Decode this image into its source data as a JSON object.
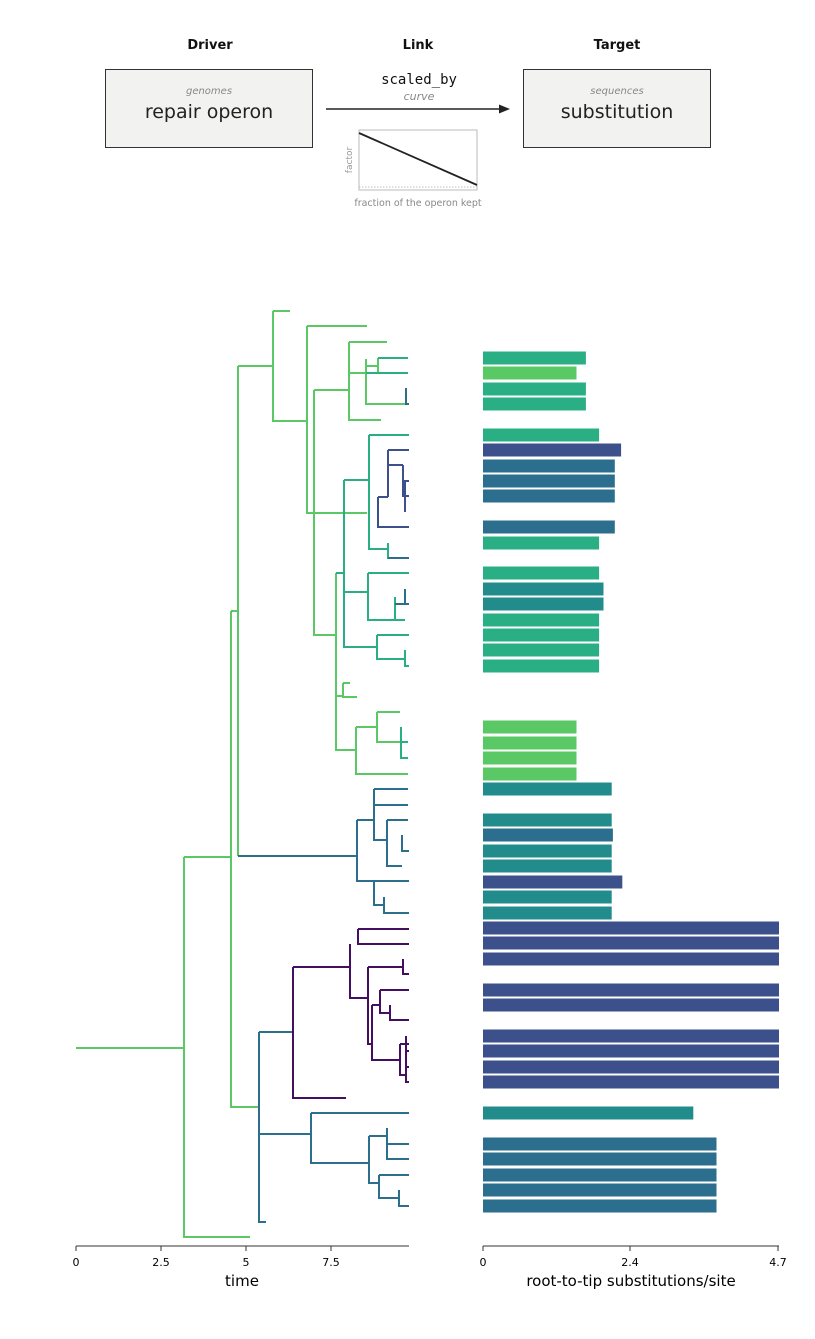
{
  "header": {
    "driver_title": "Driver",
    "link_title": "Link",
    "target_title": "Target"
  },
  "driver": {
    "category": "genomes",
    "name": "repair operon"
  },
  "link": {
    "relation": "scaled_by",
    "function": "curve",
    "inset_ylabel": "factor",
    "inset_xlabel": "fraction of the operon kept"
  },
  "target": {
    "category": "sequences",
    "name": "substitution"
  },
  "tree_axis": {
    "label": "time",
    "ticks": [
      "0",
      "2.5",
      "5",
      "7.5"
    ]
  },
  "bar_axis": {
    "label": "root-to-tip substitutions/site",
    "ticks": [
      "0",
      "2.4",
      "4.7"
    ]
  },
  "colors": {
    "light_green": "#5ac864",
    "green": "#2aaf84",
    "teal": "#228c8d",
    "blue_teal": "#2c6e8e",
    "blue": "#3c508b",
    "indigo": "#443a83",
    "purple": "#450f61"
  },
  "chart_data": {
    "type": "bar",
    "orientation": "horizontal",
    "xlabel": "root-to-tip substitutions/site",
    "xlim": [
      0,
      4.7
    ],
    "values": [
      1.64,
      1.49,
      1.64,
      1.64,
      1.85,
      2.2,
      2.1,
      2.1,
      2.1,
      2.1,
      1.85,
      1.85,
      1.92,
      1.92,
      1.85,
      1.85,
      1.85,
      1.85,
      1.49,
      1.49,
      1.49,
      1.49,
      2.05,
      2.05,
      2.07,
      2.05,
      2.05,
      2.22,
      2.05,
      2.05,
      4.86,
      4.86,
      4.86,
      4.86,
      4.86,
      4.86,
      4.86,
      4.86,
      4.86,
      3.35,
      3.72,
      3.72,
      3.72,
      3.72,
      3.72
    ],
    "colors": [
      "green",
      "light_green",
      "green",
      "green",
      "green",
      "blue",
      "blue_teal",
      "blue_teal",
      "blue_teal",
      "blue_teal",
      "green",
      "green",
      "teal",
      "teal",
      "green",
      "green",
      "green",
      "green",
      "light_green",
      "light_green",
      "light_green",
      "light_green",
      "teal",
      "teal",
      "blue_teal",
      "teal",
      "teal",
      "blue",
      "teal",
      "teal",
      "blue",
      "blue",
      "blue",
      "blue",
      "blue",
      "blue",
      "blue",
      "blue",
      "blue",
      "teal",
      "blue_teal",
      "blue_teal",
      "blue_teal",
      "blue_teal",
      "blue_teal"
    ],
    "rows_y": [
      358,
      373,
      389,
      404,
      435,
      450,
      466,
      481,
      496,
      527,
      543,
      573,
      589,
      604,
      620,
      635,
      650,
      666,
      727,
      743,
      758,
      774,
      789,
      820,
      835,
      851,
      866,
      882,
      897,
      913,
      928,
      943,
      959,
      990,
      1005,
      1036,
      1051,
      1067,
      1082,
      1113,
      1144,
      1159,
      1175,
      1190,
      1206
    ]
  }
}
